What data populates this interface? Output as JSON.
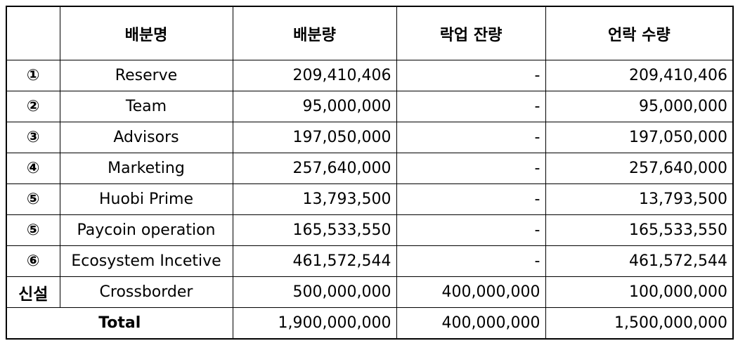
{
  "table": {
    "headers": [
      "",
      "배분명",
      "배분량",
      "락업 잔량",
      "언락 수량"
    ],
    "rows": [
      {
        "index": "①",
        "name": "Reserve",
        "allocation": "209,410,406",
        "locked": "-",
        "unlocked": "209,410,406"
      },
      {
        "index": "②",
        "name": "Team",
        "allocation": "95,000,000",
        "locked": "-",
        "unlocked": "95,000,000"
      },
      {
        "index": "③",
        "name": "Advisors",
        "allocation": "197,050,000",
        "locked": "-",
        "unlocked": "197,050,000"
      },
      {
        "index": "④",
        "name": "Marketing",
        "allocation": "257,640,000",
        "locked": "-",
        "unlocked": "257,640,000"
      },
      {
        "index": "⑤",
        "name": "Huobi Prime",
        "allocation": "13,793,500",
        "locked": "-",
        "unlocked": "13,793,500"
      },
      {
        "index": "⑤",
        "name": "Paycoin operation",
        "allocation": "165,533,550",
        "locked": "-",
        "unlocked": "165,533,550"
      },
      {
        "index": "⑥",
        "name": "Ecosystem Incetive",
        "allocation": "461,572,544",
        "locked": "-",
        "unlocked": "461,572,544"
      },
      {
        "index": "신설",
        "name": "Crossborder",
        "allocation": "500,000,000",
        "locked": "400,000,000",
        "unlocked": "100,000,000"
      }
    ],
    "total": {
      "label": "Total",
      "allocation": "1,900,000,000",
      "locked": "400,000,000",
      "unlocked": "1,500,000,000"
    }
  }
}
